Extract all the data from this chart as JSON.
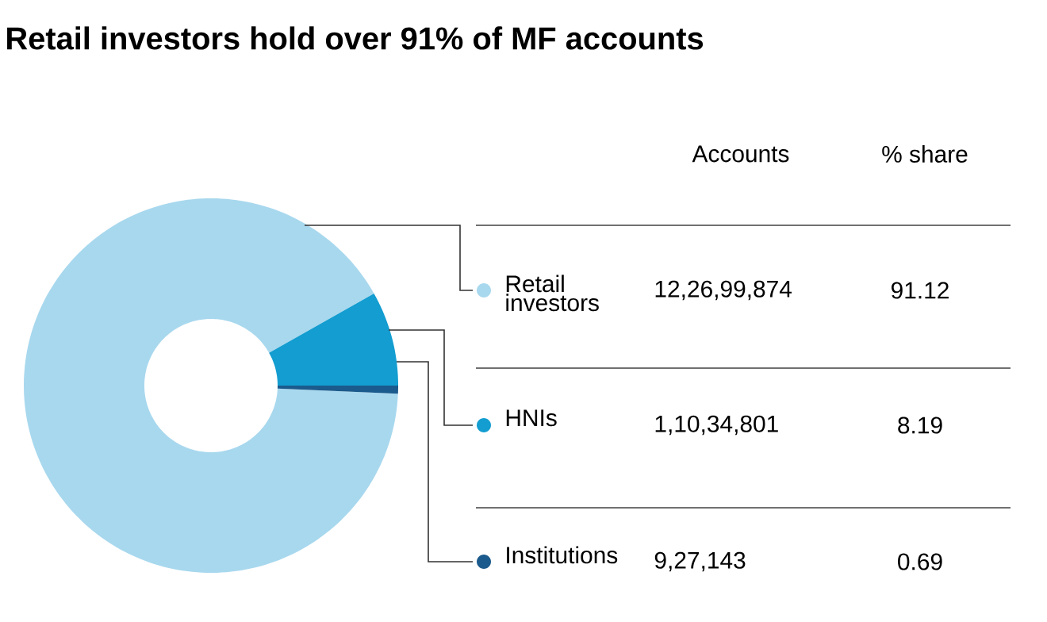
{
  "chart_data": {
    "type": "donut",
    "title": "Retail investors hold over 91% of MF accounts",
    "categories": [
      "Retail investors",
      "HNIs",
      "Institutions"
    ],
    "values": [
      91.12,
      8.19,
      0.69
    ],
    "colors": [
      "#a8d8ee",
      "#139dd0",
      "#1b5a8c"
    ],
    "data_labels": true,
    "legend": "right",
    "annotations": [
      "Accounts",
      "% share",
      "12,26,99,874",
      "1,10,34,801",
      "9,27,143"
    ]
  }
}
